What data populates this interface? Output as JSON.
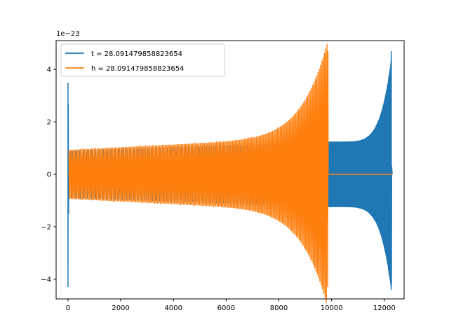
{
  "chart_data": {
    "type": "line",
    "title": "",
    "xlabel": "",
    "ylabel": "",
    "xlim": [
      -450,
      12750
    ],
    "ylim": [
      -4.75,
      5.1
    ],
    "y_offset_label": "1e−23",
    "x_ticks": [
      0,
      2000,
      4000,
      6000,
      8000,
      10000,
      12000
    ],
    "x_tick_labels": [
      "0",
      "2000",
      "4000",
      "6000",
      "8000",
      "10000",
      "12000"
    ],
    "y_ticks": [
      -4,
      -2,
      0,
      2,
      4
    ],
    "y_tick_labels": [
      "−4",
      "−2",
      "0",
      "2",
      "4"
    ],
    "grid": false,
    "legend_position": "upper-left",
    "series": [
      {
        "name": "t = 28.091479858823654",
        "color": "#1f77b4",
        "description_points": {
          "start_spike": {
            "x": 0,
            "ymax": 3.5,
            "ymin": -4.3
          },
          "ringdown_plateau_start": {
            "x": 100,
            "amp": 0.9
          },
          "ringdown_plateau_end": {
            "x": 9850,
            "amp": 1.25
          },
          "merger": {
            "x": 12270,
            "ymax": 4.7,
            "ymin": -4.2
          },
          "end_x": 12300
        }
      },
      {
        "name": "h = 28.091479858823654",
        "color": "#ff7f0e",
        "description_points": {
          "start_x": 0,
          "plateau_amp": 0.93,
          "merger": {
            "x": 9860,
            "ymax": 4.7,
            "ymin": -4.3
          },
          "end_x": 12300
        }
      }
    ]
  }
}
